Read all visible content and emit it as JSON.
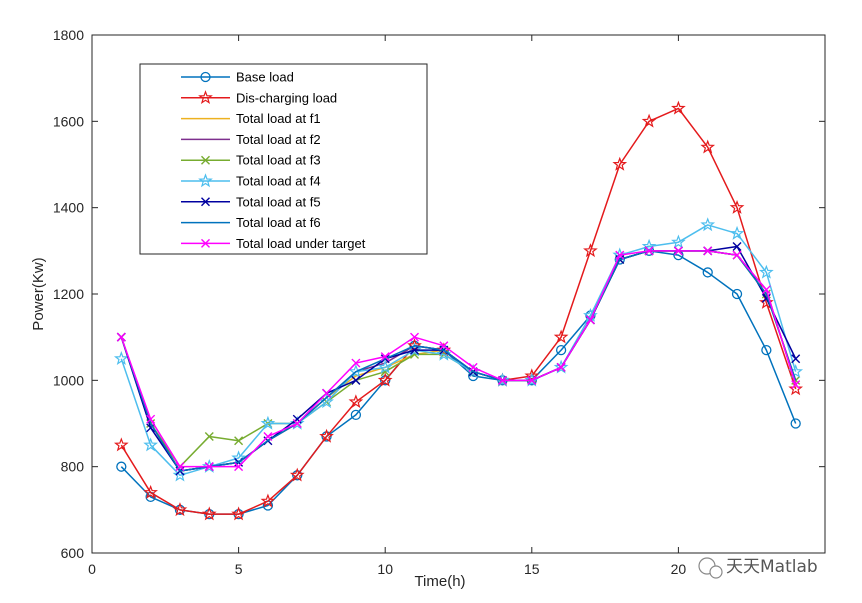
{
  "chart_data": {
    "type": "line",
    "title": "",
    "xlabel": "Time(h)",
    "ylabel": "Power(Kw)",
    "xlim": [
      0,
      25
    ],
    "ylim": [
      600,
      1800
    ],
    "xticks": [
      0,
      5,
      10,
      15,
      20
    ],
    "yticks": [
      600,
      800,
      1000,
      1200,
      1400,
      1600,
      1800
    ],
    "grid": false,
    "legend_position": "top-left",
    "x": [
      1,
      2,
      3,
      4,
      5,
      6,
      7,
      8,
      9,
      10,
      11,
      12,
      13,
      14,
      15,
      16,
      17,
      18,
      19,
      20,
      21,
      22,
      23,
      24
    ],
    "series": [
      {
        "name": "Base load",
        "color": "#0072BD",
        "marker": "circle",
        "values": [
          800,
          730,
          700,
          690,
          690,
          710,
          780,
          870,
          920,
          1000,
          1080,
          1070,
          1010,
          1000,
          1000,
          1070,
          1150,
          1280,
          1300,
          1290,
          1250,
          1200,
          1070,
          900
        ]
      },
      {
        "name": "Dis-charging load",
        "color": "#E41A1C",
        "marker": "star",
        "values": [
          850,
          740,
          700,
          690,
          690,
          720,
          780,
          870,
          950,
          1000,
          1080,
          1070,
          1020,
          1000,
          1010,
          1100,
          1300,
          1500,
          1600,
          1630,
          1540,
          1400,
          1180,
          980
        ]
      },
      {
        "name": "Total load at f1",
        "color": "#EDB120",
        "marker": "none",
        "values": [
          1100,
          900,
          790,
          800,
          810,
          860,
          900,
          960,
          1010,
          1030,
          1060,
          1070,
          1020,
          1000,
          1000,
          1030,
          1140,
          1280,
          1300,
          1300,
          1300,
          1290,
          1200,
          1000
        ]
      },
      {
        "name": "Total load at f2",
        "color": "#7E2F8E",
        "marker": "none",
        "values": [
          1100,
          900,
          790,
          800,
          810,
          860,
          900,
          960,
          1020,
          1040,
          1080,
          1070,
          1020,
          1000,
          1000,
          1030,
          1140,
          1280,
          1300,
          1300,
          1300,
          1290,
          1210,
          990
        ]
      },
      {
        "name": "Total load at f3",
        "color": "#77AC30",
        "marker": "x",
        "values": [
          1100,
          900,
          800,
          870,
          860,
          900,
          900,
          950,
          1000,
          1020,
          1060,
          1060,
          1020,
          1000,
          1000,
          1030,
          1140,
          1280,
          1300,
          1300,
          1300,
          1290,
          1200,
          1000
        ]
      },
      {
        "name": "Total load at f4",
        "color": "#4DBEEE",
        "marker": "star",
        "values": [
          1050,
          850,
          780,
          800,
          820,
          900,
          900,
          950,
          1020,
          1030,
          1070,
          1060,
          1020,
          1000,
          1000,
          1030,
          1150,
          1290,
          1310,
          1320,
          1360,
          1340,
          1250,
          1020
        ]
      },
      {
        "name": "Total load at f5",
        "color": "#0000A0",
        "marker": "x",
        "values": [
          1100,
          890,
          790,
          800,
          810,
          860,
          910,
          970,
          1000,
          1050,
          1070,
          1070,
          1020,
          1000,
          1000,
          1030,
          1140,
          1280,
          1300,
          1300,
          1300,
          1310,
          1190,
          1050
        ]
      },
      {
        "name": "Total load at f6",
        "color": "#0072BD",
        "marker": "none",
        "values": [
          1100,
          900,
          790,
          800,
          810,
          860,
          900,
          960,
          1020,
          1050,
          1080,
          1070,
          1020,
          1000,
          1000,
          1030,
          1140,
          1280,
          1300,
          1300,
          1300,
          1290,
          1200,
          1000
        ]
      },
      {
        "name": "Total load under target",
        "color": "#FF00FF",
        "marker": "x",
        "values": [
          1100,
          910,
          800,
          800,
          800,
          870,
          900,
          970,
          1040,
          1055,
          1100,
          1080,
          1030,
          1000,
          1000,
          1030,
          1140,
          1290,
          1300,
          1300,
          1300,
          1290,
          1210,
          990
        ]
      }
    ]
  },
  "watermark": {
    "text": "天天Matlab",
    "icon": "wechat-icon"
  }
}
